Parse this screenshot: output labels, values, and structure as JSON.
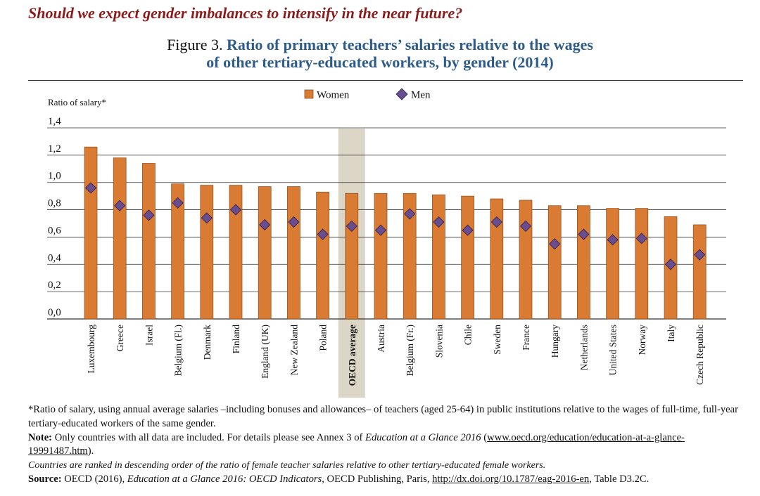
{
  "heading": "Should we expect gender imbalances to intensify in the near future?",
  "figure": {
    "label": "Figure 3.",
    "title_line1": "Ratio of primary teachers’ salaries relative to the wages",
    "title_line2": "of other tertiary-educated workers, by gender (2014)"
  },
  "chart_data": {
    "type": "bar",
    "ylabel": "Ratio of salary*",
    "ylim": [
      0,
      1.4
    ],
    "yticks": [
      "0,0",
      "0,2",
      "0,4",
      "0,6",
      "0,8",
      "1,0",
      "1,2",
      "1,4"
    ],
    "yticks_values": [
      0,
      0.2,
      0.4,
      0.6,
      0.8,
      1.0,
      1.2,
      1.4
    ],
    "grid": true,
    "legend_position": "top-center",
    "highlight_category": "OECD average",
    "categories": [
      "Luxembourg",
      "Greece",
      "Israel",
      "Belgium (Fl.)",
      "Denmark",
      "Finland",
      "England (UK)",
      "New Zealand",
      "Poland",
      "OECD average",
      "Austria",
      "Belgium (Fr.)",
      "Slovenia",
      "Chile",
      "Sweden",
      "France",
      "Hungary",
      "Netherlands",
      "United States",
      "Norway",
      "Italy",
      "Czech Republic"
    ],
    "series": [
      {
        "name": "Women",
        "type": "bar",
        "color": "#d97b33",
        "values": [
          1.26,
          1.18,
          1.14,
          0.99,
          0.98,
          0.98,
          0.97,
          0.97,
          0.93,
          0.92,
          0.92,
          0.92,
          0.91,
          0.9,
          0.88,
          0.87,
          0.83,
          0.83,
          0.81,
          0.81,
          0.75,
          0.69
        ]
      },
      {
        "name": "Men",
        "type": "marker-diamond",
        "color": "#6a4d8e",
        "values": [
          0.96,
          0.83,
          0.76,
          0.85,
          0.74,
          0.8,
          0.69,
          0.71,
          0.62,
          0.68,
          0.65,
          0.77,
          0.71,
          0.65,
          0.71,
          0.68,
          0.55,
          0.62,
          0.58,
          0.59,
          0.4,
          0.47
        ]
      }
    ]
  },
  "colors": {
    "heading": "#8b1a1a",
    "title": "#2e5c8a",
    "bar": "#d97b33",
    "marker": "#6a4d8e",
    "highlight": "#dcd6c6"
  },
  "notes": {
    "footnote": "*Ratio of salary, using annual average salaries –including bonuses and allowances– of teachers (aged 25-64) in public institutions relative to the wages of full-time, full-year tertiary-educated workers of the same gender.",
    "note_label": "Note:",
    "note_text": " Only countries with all data are included. For details please see Annex 3 of ",
    "note_pub": "Education at a Glance 2016",
    "note_space": " (",
    "note_link": "www.oecd.org/education/education-at-a-glance-19991487.htm",
    "note_end": ").",
    "ranking": "Countries are ranked in descending order of the ratio of female teacher salaries relative to other tertiary-educated female workers.",
    "source_label": "Source:",
    "source_text1": " OECD (2016), ",
    "source_pub": "Education at a Glance 2016: OECD Indicators",
    "source_text2": ", OECD Publishing, Paris, ",
    "source_link": "http://dx.doi.org/10.1787/eag-2016-en",
    "source_text3": ", Table D3.2C."
  }
}
